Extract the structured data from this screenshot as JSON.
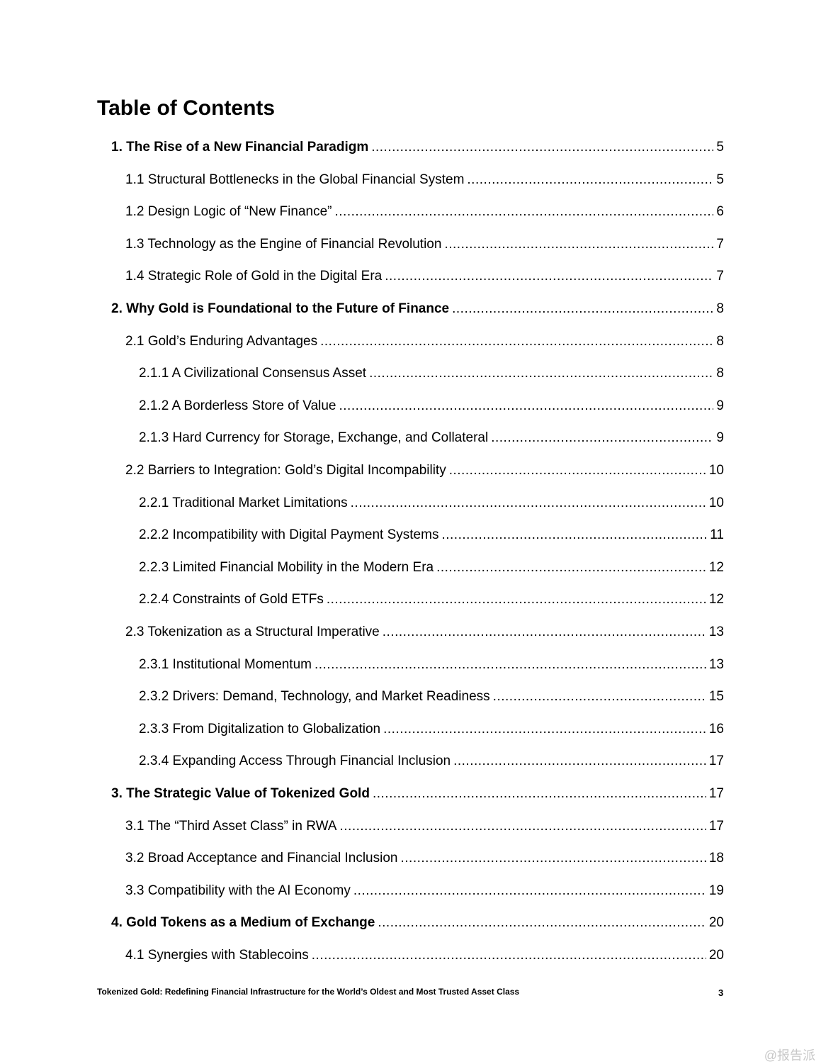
{
  "title": "Table of Contents",
  "entries": [
    {
      "level": 1,
      "text": "1. The Rise of a New Financial Paradigm",
      "page": "5"
    },
    {
      "level": 2,
      "text": "1.1 Structural Bottlenecks in the Global Financial System",
      "page": "5"
    },
    {
      "level": 2,
      "text": "1.2 Design Logic of “New Finance”",
      "page": "6"
    },
    {
      "level": 2,
      "text": "1.3 Technology as the Engine of Financial Revolution",
      "page": "7"
    },
    {
      "level": 2,
      "text": "1.4 Strategic Role of Gold in the Digital Era",
      "page": "7"
    },
    {
      "level": 1,
      "text": "2. Why Gold is Foundational to the Future of Finance",
      "page": "8"
    },
    {
      "level": 2,
      "text": "2.1 Gold’s Enduring Advantages",
      "page": "8"
    },
    {
      "level": 3,
      "text": "2.1.1 A Civilizational Consensus Asset",
      "page": "8"
    },
    {
      "level": 3,
      "text": "2.1.2 A Borderless Store of Value",
      "page": "9"
    },
    {
      "level": 3,
      "text": "2.1.3 Hard Currency for Storage, Exchange, and Collateral",
      "page": "9"
    },
    {
      "level": 2,
      "text": "2.2 Barriers to Integration: Gold’s Digital Incompability",
      "page": "10"
    },
    {
      "level": 3,
      "text": "2.2.1 Traditional Market Limitations",
      "page": "10"
    },
    {
      "level": 3,
      "text": "2.2.2 Incompatibility with Digital Payment Systems",
      "page": "11"
    },
    {
      "level": 3,
      "text": "2.2.3 Limited Financial Mobility in the Modern Era",
      "page": "12"
    },
    {
      "level": 3,
      "text": "2.2.4 Constraints of Gold ETFs",
      "page": "12"
    },
    {
      "level": 2,
      "text": "2.3 Tokenization as a Structural Imperative",
      "page": "13"
    },
    {
      "level": 3,
      "text": "2.3.1 Institutional Momentum",
      "page": "13"
    },
    {
      "level": 3,
      "text": "2.3.2 Drivers: Demand, Technology, and Market Readiness",
      "page": "15"
    },
    {
      "level": 3,
      "text": "2.3.3 From Digitalization to Globalization",
      "page": "16"
    },
    {
      "level": 3,
      "text": "2.3.4 Expanding Access Through Financial Inclusion",
      "page": "17"
    },
    {
      "level": 1,
      "text": "3. The Strategic Value of Tokenized Gold",
      "page": "17"
    },
    {
      "level": 2,
      "text": "3.1 The “Third Asset Class” in RWA",
      "page": "17"
    },
    {
      "level": 2,
      "text": "3.2 Broad Acceptance and Financial Inclusion",
      "page": "18"
    },
    {
      "level": 2,
      "text": "3.3 Compatibility with the AI Economy",
      "page": "19"
    },
    {
      "level": 1,
      "text": "4. Gold Tokens as a Medium of Exchange",
      "page": "20"
    },
    {
      "level": 2,
      "text": "4.1 Synergies with Stablecoins",
      "page": "20"
    }
  ],
  "footer": {
    "text": "Tokenized Gold: Redefining Financial Infrastructure for the World’s Oldest and Most Trusted Asset Class",
    "page_number": "3"
  },
  "watermark": "@报告派"
}
